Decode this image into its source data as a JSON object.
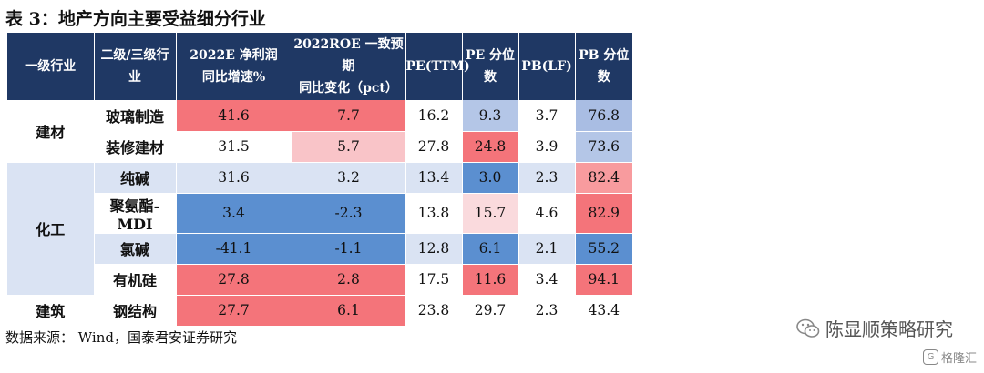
{
  "title": "表 3：地产方向主要受益细分行业",
  "table": {
    "headers": [
      {
        "l1": "一级行业",
        "l2": ""
      },
      {
        "l1": "二级/三级行业",
        "l2": ""
      },
      {
        "l1": "2022E 净利润",
        "l2": "同比增速%"
      },
      {
        "l1": "2022ROE 一致预期",
        "l2": "同比变化（pct）"
      },
      {
        "l1": "PE(TTM)",
        "l2": ""
      },
      {
        "l1": "PE 分位数",
        "l2": ""
      },
      {
        "l1": "PB(LF)",
        "l2": ""
      },
      {
        "l1": "PB 分位数",
        "l2": ""
      }
    ],
    "groups": [
      {
        "name": "建材",
        "bg": "#ffffff",
        "rows": [
          {
            "sub": "玻璃制造",
            "vals": [
              "41.6",
              "7.7",
              "16.2",
              "9.3",
              "3.7",
              "76.8"
            ],
            "colors": [
              "#f4747a",
              "#f4747a",
              "#ffffff",
              "#b4c6e7",
              "#ffffff",
              "#a9bde3"
            ]
          },
          {
            "sub": "装修建材",
            "vals": [
              "31.5",
              "5.7",
              "27.8",
              "24.8",
              "3.9",
              "73.6"
            ],
            "colors": [
              "#ffffff",
              "#f9c4c8",
              "#ffffff",
              "#f4747a",
              "#ffffff",
              "#b4c6e7"
            ]
          }
        ]
      },
      {
        "name": "化工",
        "bg": "#dae3f3",
        "rows": [
          {
            "sub": "纯碱",
            "vals": [
              "31.6",
              "3.2",
              "13.4",
              "3.0",
              "2.3",
              "82.4"
            ],
            "colors": [
              "#dae3f3",
              "#dae3f3",
              "#dae3f3",
              "#5b8fd0",
              "#dae3f3",
              "#f89b9e"
            ]
          },
          {
            "sub": "聚氨酯-MDI",
            "vals": [
              "3.4",
              "-2.3",
              "13.8",
              "15.7",
              "4.6",
              "82.9"
            ],
            "colors": [
              "#5b8fd0",
              "#5b8fd0",
              "#ffffff",
              "#fadadd",
              "#ffffff",
              "#f4747a"
            ]
          },
          {
            "sub": "氯碱",
            "vals": [
              "-41.1",
              "-1.1",
              "12.8",
              "6.1",
              "2.1",
              "55.2"
            ],
            "colors": [
              "#5b8fd0",
              "#5b8fd0",
              "#dae3f3",
              "#5b8fd0",
              "#dae3f3",
              "#5b8fd0"
            ]
          },
          {
            "sub": "有机硅",
            "vals": [
              "27.8",
              "2.8",
              "17.5",
              "11.6",
              "3.4",
              "94.1"
            ],
            "colors": [
              "#f4747a",
              "#f4747a",
              "#ffffff",
              "#f4747a",
              "#ffffff",
              "#f4747a"
            ]
          }
        ]
      },
      {
        "name": "建筑",
        "bg": "#ffffff",
        "rows": [
          {
            "sub": "钢结构",
            "vals": [
              "27.7",
              "6.1",
              "23.8",
              "29.7",
              "2.3",
              "43.4"
            ],
            "colors": [
              "#f4747a",
              "#f4747a",
              "#ffffff",
              "#ffffff",
              "#ffffff",
              "#ffffff"
            ]
          }
        ]
      }
    ]
  },
  "source": "数据来源：   Wind，国泰君安证券研究",
  "watermark": "陈显顺策略研究",
  "watermark2": "格隆汇",
  "watermark2_glyph": "G"
}
